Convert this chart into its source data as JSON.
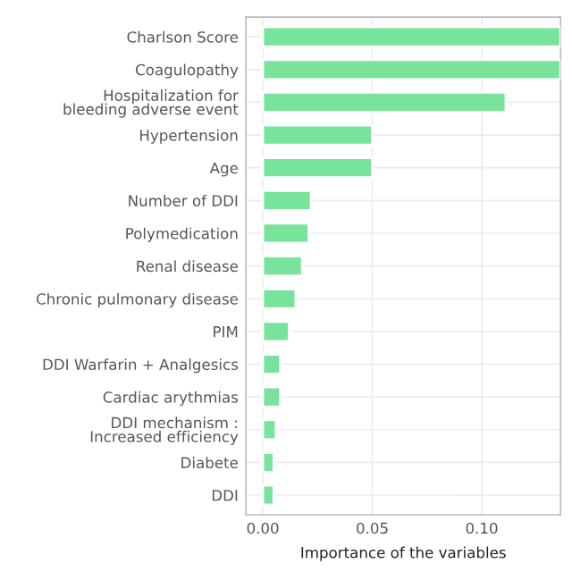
{
  "chart_data": {
    "type": "bar",
    "orientation": "horizontal",
    "xlabel": "Importance of the variables",
    "categories": [
      "Charlson Score",
      "Coagulopathy",
      "Hospitalization for bleeding adverse event",
      "Hypertension",
      "Age",
      "Number of DDI",
      "Polymedication",
      "Renal disease",
      "Chronic pulmonary disease",
      "PIM",
      "DDI Warfarin + Analgesics",
      "Cardiac arythmias",
      "DDI mechanism : Increased efficiency",
      "Diabete",
      "DDI"
    ],
    "values": [
      0.136,
      0.136,
      0.111,
      0.05,
      0.05,
      0.022,
      0.021,
      0.018,
      0.015,
      0.012,
      0.008,
      0.008,
      0.006,
      0.005,
      0.005
    ],
    "color": "#77e39b",
    "xlim": [
      -0.0077,
      0.136
    ],
    "xticks": [
      {
        "value": 0,
        "label": "0.00"
      },
      0.05,
      {
        "value": 0.1,
        "label": "0.10"
      }
    ],
    "grid": true
  }
}
